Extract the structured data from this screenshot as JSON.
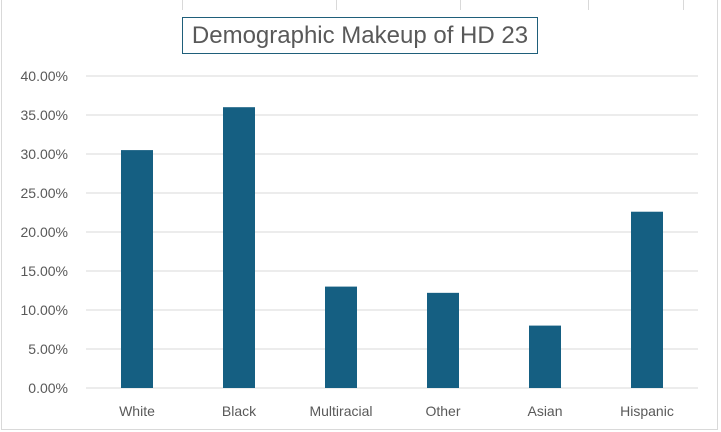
{
  "chart_data": {
    "type": "bar",
    "title": "Demographic Makeup of HD 23",
    "xlabel": "",
    "ylabel": "",
    "categories": [
      "White",
      "Black",
      "Multiracial",
      "Other",
      "Asian",
      "Hispanic"
    ],
    "values": [
      30.5,
      36.0,
      13.0,
      12.2,
      8.0,
      22.6
    ],
    "ylim": [
      0,
      40
    ],
    "y_ticks": [
      "0.00%",
      "5.00%",
      "10.00%",
      "15.00%",
      "20.00%",
      "25.00%",
      "30.00%",
      "35.00%",
      "40.00%"
    ],
    "grid": true,
    "legend": "none",
    "bar_color": "#155f82",
    "grid_color": "#d9d9d9",
    "text_color": "#595959"
  }
}
